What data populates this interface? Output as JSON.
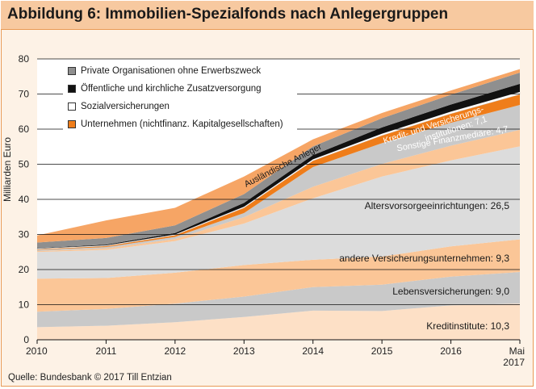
{
  "header": {
    "title": "Abbildung 6: Immobilien-Spezialfonds nach Anlegergruppen"
  },
  "footer": {
    "source": "Quelle: Bundesbank © 2017 Till Entzian"
  },
  "chart_data": {
    "type": "area",
    "stacked": true,
    "ylabel": "Milliarden Euro",
    "xlabel": "",
    "ylim": [
      0,
      80
    ],
    "y_ticks": [
      0,
      10,
      20,
      30,
      40,
      50,
      60,
      70,
      80
    ],
    "x_ticks": [
      "2010",
      "2011",
      "2012",
      "2013",
      "2014",
      "2015",
      "2016",
      "Mai 2017"
    ],
    "x": [
      0,
      1,
      2,
      3,
      4,
      5,
      6,
      7
    ],
    "series": [
      {
        "name": "Kreditinstitute",
        "label": "Kreditinstitute: 10,3",
        "color": "#fde0c6",
        "values": [
          3.6,
          4.0,
          5.0,
          6.5,
          8.3,
          8.2,
          9.8,
          10.3
        ]
      },
      {
        "name": "Lebensversicherungen",
        "label": "Lebensversicherungen: 9,0",
        "color": "#c9c9c9",
        "values": [
          4.4,
          4.8,
          5.3,
          5.8,
          6.7,
          7.5,
          8.2,
          9.0
        ]
      },
      {
        "name": "andere Versicherungsunternehmen",
        "label": "andere Versicherungsunternehmen: 9,3",
        "color": "#fbc697",
        "values": [
          9.4,
          8.8,
          8.8,
          9.0,
          7.8,
          8.0,
          8.6,
          9.3
        ]
      },
      {
        "name": "Altersvorsorgeeinrichtungen",
        "label": "Altersvorsorgeeinrichtungen: 26,5",
        "color": "#dcdcdc",
        "values": [
          7.6,
          8.0,
          9.0,
          11.8,
          17.5,
          22.8,
          24.5,
          26.5
        ]
      },
      {
        "name": "Sonstige Finanzmediäre",
        "label": "Sonstige Finanzmediäre: 4,7",
        "color": "#fbc697",
        "values": [
          0.3,
          0.4,
          0.6,
          1.8,
          3.3,
          3.6,
          4.2,
          4.7
        ]
      },
      {
        "name": "Kredit- und Versicherungsinstitutionen",
        "label": "Kredit- und Versicherungs-\ninstitutionen: 7,1",
        "color": "#c9c9c9",
        "values": [
          0.3,
          0.4,
          0.6,
          1.2,
          5.6,
          5.9,
          6.5,
          7.1
        ]
      },
      {
        "name": "Unternehmen (nichtfinanz. Kapitalgesellschaften)",
        "legend": true,
        "color": "#ef7d1a",
        "values": [
          0.2,
          0.3,
          0.5,
          1.5,
          1.8,
          2.2,
          2.6,
          3.0
        ]
      },
      {
        "name": "Sozialversicherungen",
        "legend": true,
        "color": "#ffffff",
        "values": [
          0.2,
          0.2,
          0.2,
          0.3,
          0.4,
          0.5,
          0.6,
          0.7
        ]
      },
      {
        "name": "Öffentliche und kirchliche Zusatzversorgung",
        "legend": true,
        "color": "#111111",
        "values": [
          0.1,
          0.2,
          0.4,
          1.1,
          1.2,
          1.8,
          2.0,
          2.3
        ]
      },
      {
        "name": "Private Organisationen ohne Erwerbszweck",
        "legend": true,
        "color": "#8f8f8f",
        "values": [
          1.6,
          1.9,
          2.2,
          2.5,
          2.5,
          2.6,
          2.8,
          3.2
        ]
      },
      {
        "name": "Ausländische Anleger",
        "label": "Ausländische Anleger",
        "color": "#f6a565",
        "values": [
          2.0,
          5.0,
          5.0,
          5.0,
          2.0,
          1.5,
          1.2,
          1.0
        ]
      }
    ],
    "legend": [
      "Private Organisationen ohne Erwerbszweck",
      "Öffentliche und kirchliche Zusatzversorgung",
      "Sozialversicherungen",
      "Unternehmen (nichtfinanz. Kapitalgesellschaften)"
    ],
    "legend_colors": [
      "#8f8f8f",
      "#111111",
      "#ffffff",
      "#ef7d1a"
    ],
    "legend_position": "top-left",
    "grid": "horizontal"
  }
}
